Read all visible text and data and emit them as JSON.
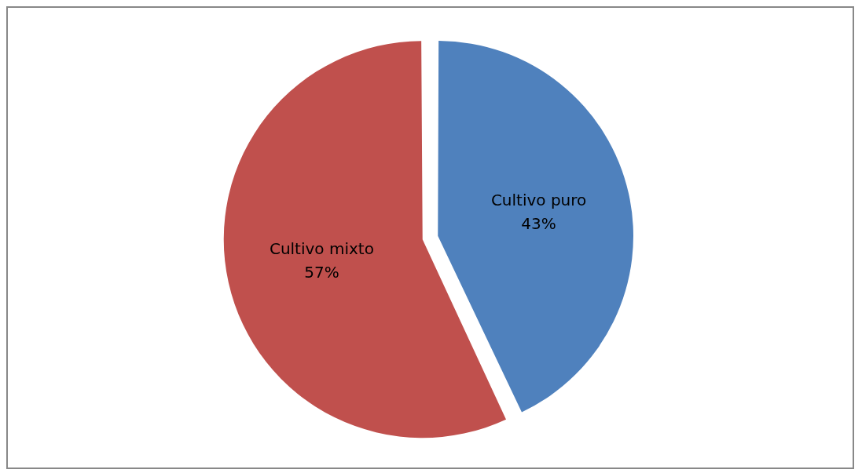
{
  "chart_data": {
    "type": "pie",
    "categories": [
      "Cultivo puro",
      "Cultivo mixto"
    ],
    "values": [
      43,
      57
    ],
    "colors": [
      "#4f81bd",
      "#c0504d"
    ],
    "value_labels": [
      "43%",
      "57%"
    ]
  }
}
